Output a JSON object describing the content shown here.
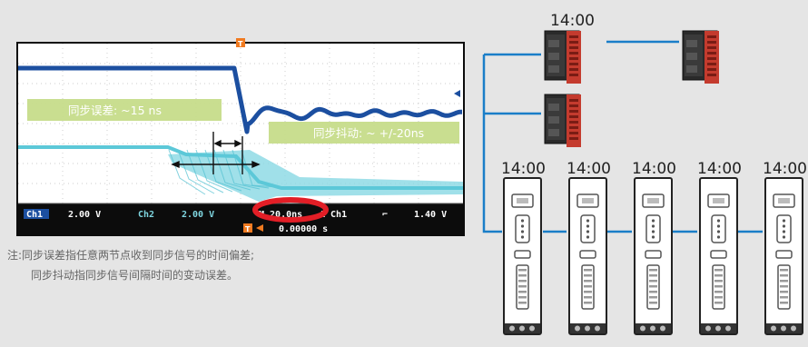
{
  "scope": {
    "ch1_label": "Ch1",
    "ch1_scale": "2.00 V",
    "ch2_label": "Ch2",
    "ch2_scale": "2.00 V",
    "timebase": "M 20.0ns",
    "trigger_source": "A  Ch1",
    "trigger_slope_glyph": "⌐",
    "trigger_level": "1.40 V",
    "trigger_offset": "0.00000 s",
    "trigger_marker": "T"
  },
  "annotations": {
    "sync_error": "同步误差: ~15 ns",
    "sync_jitter": "同步抖动: ~ +/-20ns"
  },
  "notes": {
    "line1": "注:同步误差指任意两节点收到同步信号的时间偏差;",
    "line2": "同步抖动指同步信号间隔时间的变动误差。"
  },
  "network": {
    "controller_time": "14:00",
    "drive_times": [
      "14:00",
      "14:00",
      "14:00",
      "14:00",
      "14:00"
    ]
  },
  "colors": {
    "ch1_trace": "#1c4fa0",
    "ch2_trace": "#5cc8d8",
    "annotation_fill": "#c6dc8a",
    "network_line": "#1a7ec8",
    "highlight_ring": "#e21e26"
  }
}
